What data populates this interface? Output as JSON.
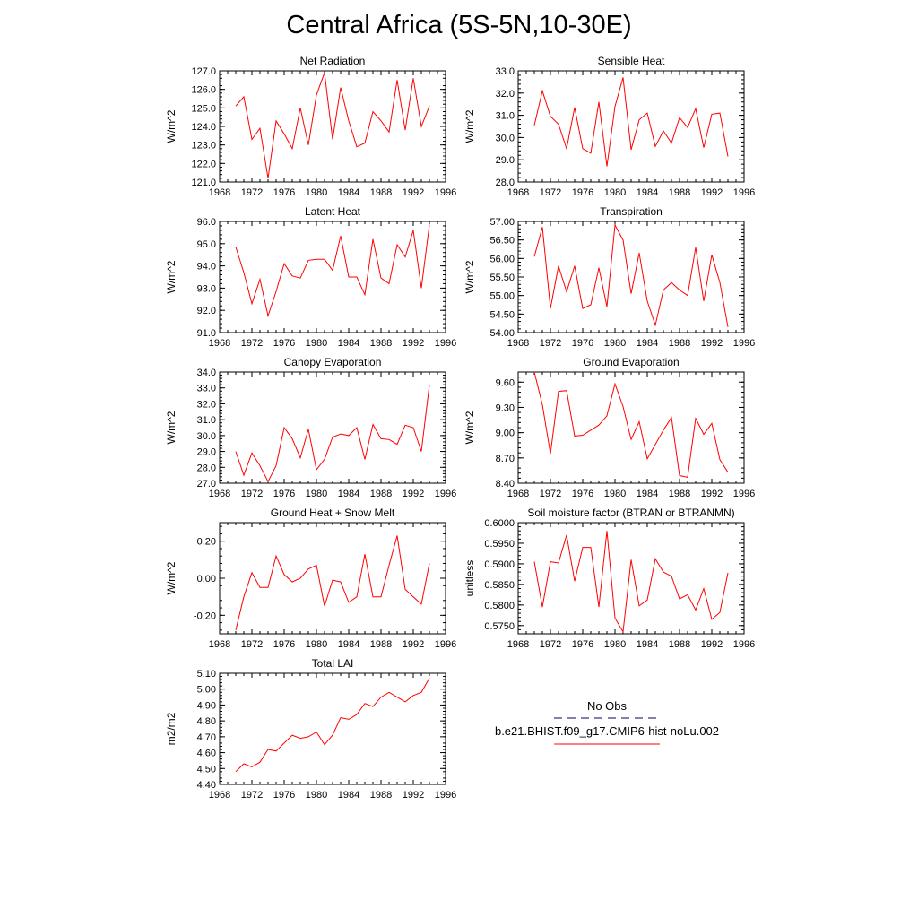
{
  "page": {
    "title": "Central Africa (5S-5N,10-30E)",
    "line_color": "#ff0000",
    "obs_color": "#00005a"
  },
  "legend": {
    "obs_label": "No Obs",
    "case_label": "b.e21.BHIST.f09_g17.CMIP6-hist-noLu.002"
  },
  "chart_data": [
    {
      "type": "line",
      "title": "Net Radiation",
      "ylabel": "W/m^2",
      "xlim": [
        1968,
        1996
      ],
      "xticks": [
        1968,
        1972,
        1976,
        1980,
        1984,
        1988,
        1992,
        1996
      ],
      "ylim": [
        121.0,
        127.0
      ],
      "yticks": [
        "121.0",
        "122.0",
        "123.0",
        "124.0",
        "125.0",
        "126.0",
        "127.0"
      ],
      "x": [
        1970,
        1971,
        1972,
        1973,
        1974,
        1975,
        1976,
        1977,
        1978,
        1979,
        1980,
        1981,
        1982,
        1983,
        1984,
        1985,
        1986,
        1987,
        1988,
        1989,
        1990,
        1991,
        1992,
        1993,
        1994
      ],
      "values": [
        125.1,
        125.6,
        123.3,
        123.9,
        121.2,
        124.3,
        123.6,
        122.8,
        125.0,
        123.0,
        125.7,
        126.9,
        123.3,
        126.1,
        124.3,
        122.9,
        123.1,
        124.8,
        124.3,
        123.7,
        126.5,
        123.8,
        126.6,
        124.0,
        125.1
      ]
    },
    {
      "type": "line",
      "title": "Sensible Heat",
      "ylabel": "W/m^2",
      "xlim": [
        1968,
        1996
      ],
      "xticks": [
        1968,
        1972,
        1976,
        1980,
        1984,
        1988,
        1992,
        1996
      ],
      "ylim": [
        28.0,
        33.0
      ],
      "yticks": [
        "28.0",
        "29.0",
        "30.0",
        "31.0",
        "32.0",
        "33.0"
      ],
      "x": [
        1970,
        1971,
        1972,
        1973,
        1974,
        1975,
        1976,
        1977,
        1978,
        1979,
        1980,
        1981,
        1982,
        1983,
        1984,
        1985,
        1986,
        1987,
        1988,
        1989,
        1990,
        1991,
        1992,
        1993,
        1994
      ],
      "values": [
        30.55,
        32.1,
        30.95,
        30.6,
        29.5,
        31.35,
        29.5,
        29.3,
        31.6,
        28.7,
        31.4,
        32.7,
        29.45,
        30.8,
        31.1,
        29.6,
        30.3,
        29.75,
        30.9,
        30.45,
        31.3,
        29.55,
        31.05,
        31.1,
        29.15
      ]
    },
    {
      "type": "line",
      "title": "Latent Heat",
      "ylabel": "W/m^2",
      "xlim": [
        1968,
        1996
      ],
      "xticks": [
        1968,
        1972,
        1976,
        1980,
        1984,
        1988,
        1992,
        1996
      ],
      "ylim": [
        91.0,
        96.0
      ],
      "yticks": [
        "91.0",
        "92.0",
        "93.0",
        "94.0",
        "95.0",
        "96.0"
      ],
      "x": [
        1970,
        1971,
        1972,
        1973,
        1974,
        1975,
        1976,
        1977,
        1978,
        1979,
        1980,
        1981,
        1982,
        1983,
        1984,
        1985,
        1986,
        1987,
        1988,
        1989,
        1990,
        1991,
        1992,
        1993,
        1994
      ],
      "values": [
        94.85,
        93.7,
        92.3,
        93.4,
        91.75,
        92.85,
        94.1,
        93.55,
        93.45,
        94.25,
        94.3,
        94.3,
        93.8,
        95.35,
        93.5,
        93.5,
        92.7,
        95.2,
        93.45,
        93.2,
        94.95,
        94.4,
        95.6,
        93.0,
        95.85
      ]
    },
    {
      "type": "line",
      "title": "Transpiration",
      "ylabel": "W/m^2",
      "xlim": [
        1968,
        1996
      ],
      "xticks": [
        1968,
        1972,
        1976,
        1980,
        1984,
        1988,
        1992,
        1996
      ],
      "ylim": [
        54.0,
        57.0
      ],
      "yticks": [
        "54.00",
        "54.50",
        "55.00",
        "55.50",
        "56.00",
        "56.50",
        "57.00"
      ],
      "x": [
        1970,
        1971,
        1972,
        1973,
        1974,
        1975,
        1976,
        1977,
        1978,
        1979,
        1980,
        1981,
        1982,
        1983,
        1984,
        1985,
        1986,
        1987,
        1988,
        1989,
        1990,
        1991,
        1992,
        1993,
        1994
      ],
      "values": [
        56.05,
        56.85,
        54.65,
        55.8,
        55.1,
        55.8,
        54.65,
        54.75,
        55.75,
        54.7,
        56.9,
        56.5,
        55.05,
        56.15,
        54.85,
        54.2,
        55.15,
        55.35,
        55.15,
        55.0,
        56.3,
        54.85,
        56.1,
        55.35,
        54.15
      ]
    },
    {
      "type": "line",
      "title": "Canopy Evaporation",
      "ylabel": "W/m^2",
      "xlim": [
        1968,
        1996
      ],
      "xticks": [
        1968,
        1972,
        1976,
        1980,
        1984,
        1988,
        1992,
        1996
      ],
      "ylim": [
        27.0,
        34.0
      ],
      "yticks": [
        "27.0",
        "28.0",
        "29.0",
        "30.0",
        "31.0",
        "32.0",
        "33.0",
        "34.0"
      ],
      "x": [
        1970,
        1971,
        1972,
        1973,
        1974,
        1975,
        1976,
        1977,
        1978,
        1979,
        1980,
        1981,
        1982,
        1983,
        1984,
        1985,
        1986,
        1987,
        1988,
        1989,
        1990,
        1991,
        1992,
        1993,
        1994
      ],
      "values": [
        29.0,
        27.5,
        28.9,
        28.1,
        27.1,
        28.1,
        30.5,
        29.8,
        28.6,
        30.4,
        27.85,
        28.5,
        29.9,
        30.1,
        30.0,
        30.5,
        28.5,
        30.7,
        29.8,
        29.75,
        29.45,
        30.65,
        30.5,
        29.0,
        33.2
      ]
    },
    {
      "type": "line",
      "title": "Ground Evaporation",
      "ylabel": "W/m^2",
      "xlim": [
        1968,
        1996
      ],
      "xticks": [
        1968,
        1972,
        1976,
        1980,
        1984,
        1988,
        1992,
        1996
      ],
      "ylim": [
        8.4,
        9.72
      ],
      "yticks": [
        "8.40",
        "8.70",
        "9.00",
        "9.30",
        "9.60"
      ],
      "ytick_values": [
        8.4,
        8.7,
        9.0,
        9.3,
        9.6
      ],
      "x": [
        1970,
        1971,
        1972,
        1973,
        1974,
        1975,
        1976,
        1977,
        1978,
        1979,
        1980,
        1981,
        1982,
        1983,
        1984,
        1985,
        1986,
        1987,
        1988,
        1989,
        1990,
        1991,
        1992,
        1993,
        1994
      ],
      "values": [
        9.72,
        9.33,
        8.75,
        9.49,
        9.5,
        8.96,
        8.97,
        9.03,
        9.09,
        9.2,
        9.58,
        9.31,
        8.92,
        9.13,
        8.69,
        8.86,
        9.03,
        9.18,
        8.49,
        8.47,
        9.17,
        8.98,
        9.11,
        8.68,
        8.53
      ]
    },
    {
      "type": "line",
      "title": "Ground Heat + Snow Melt",
      "ylabel": "W/m^2",
      "xlim": [
        1968,
        1996
      ],
      "xticks": [
        1968,
        1972,
        1976,
        1980,
        1984,
        1988,
        1992,
        1996
      ],
      "ylim": [
        -0.3,
        0.3
      ],
      "yticks": [
        "-0.20",
        "0.00",
        "0.20"
      ],
      "ytick_values": [
        -0.2,
        0.0,
        0.2
      ],
      "x": [
        1970,
        1971,
        1972,
        1973,
        1974,
        1975,
        1976,
        1977,
        1978,
        1979,
        1980,
        1981,
        1982,
        1983,
        1984,
        1985,
        1986,
        1987,
        1988,
        1989,
        1990,
        1991,
        1992,
        1993,
        1994
      ],
      "values": [
        -0.28,
        -0.1,
        0.03,
        -0.05,
        -0.05,
        0.12,
        0.02,
        -0.02,
        0.0,
        0.05,
        0.07,
        -0.15,
        -0.01,
        -0.02,
        -0.13,
        -0.1,
        0.13,
        -0.1,
        -0.1,
        0.07,
        0.23,
        -0.06,
        -0.1,
        -0.14,
        0.08
      ]
    },
    {
      "type": "line",
      "title": "Soil moisture factor (BTRAN or BTRANMN)",
      "ylabel": "unitless",
      "xlim": [
        1968,
        1996
      ],
      "xticks": [
        1968,
        1972,
        1976,
        1980,
        1984,
        1988,
        1992,
        1996
      ],
      "ylim": [
        0.573,
        0.6
      ],
      "yticks": [
        "0.5750",
        "0.5800",
        "0.5850",
        "0.5900",
        "0.5950",
        "0.6000"
      ],
      "ytick_values": [
        0.575,
        0.58,
        0.585,
        0.59,
        0.595,
        0.6
      ],
      "x": [
        1970,
        1971,
        1972,
        1973,
        1974,
        1975,
        1976,
        1977,
        1978,
        1979,
        1980,
        1981,
        1982,
        1983,
        1984,
        1985,
        1986,
        1987,
        1988,
        1989,
        1990,
        1991,
        1992,
        1993,
        1994
      ],
      "values": [
        0.5905,
        0.5795,
        0.5905,
        0.5902,
        0.597,
        0.5858,
        0.594,
        0.594,
        0.5795,
        0.598,
        0.5768,
        0.5735,
        0.591,
        0.5798,
        0.5812,
        0.5912,
        0.588,
        0.587,
        0.5815,
        0.5825,
        0.5788,
        0.584,
        0.5765,
        0.5782,
        0.5878
      ]
    },
    {
      "type": "line",
      "title": "Total LAI",
      "ylabel": "m2/m2",
      "xlim": [
        1968,
        1996
      ],
      "xticks": [
        1968,
        1972,
        1976,
        1980,
        1984,
        1988,
        1992,
        1996
      ],
      "ylim": [
        4.4,
        5.1
      ],
      "yticks": [
        "4.40",
        "4.50",
        "4.60",
        "4.70",
        "4.80",
        "4.90",
        "5.00",
        "5.10"
      ],
      "x": [
        1970,
        1971,
        1972,
        1973,
        1974,
        1975,
        1976,
        1977,
        1978,
        1979,
        1980,
        1981,
        1982,
        1983,
        1984,
        1985,
        1986,
        1987,
        1988,
        1989,
        1990,
        1991,
        1992,
        1993,
        1994
      ],
      "values": [
        4.48,
        4.53,
        4.51,
        4.54,
        4.62,
        4.61,
        4.66,
        4.71,
        4.69,
        4.7,
        4.73,
        4.65,
        4.71,
        4.82,
        4.81,
        4.84,
        4.91,
        4.89,
        4.95,
        4.98,
        4.95,
        4.92,
        4.96,
        4.98,
        5.07
      ]
    }
  ]
}
